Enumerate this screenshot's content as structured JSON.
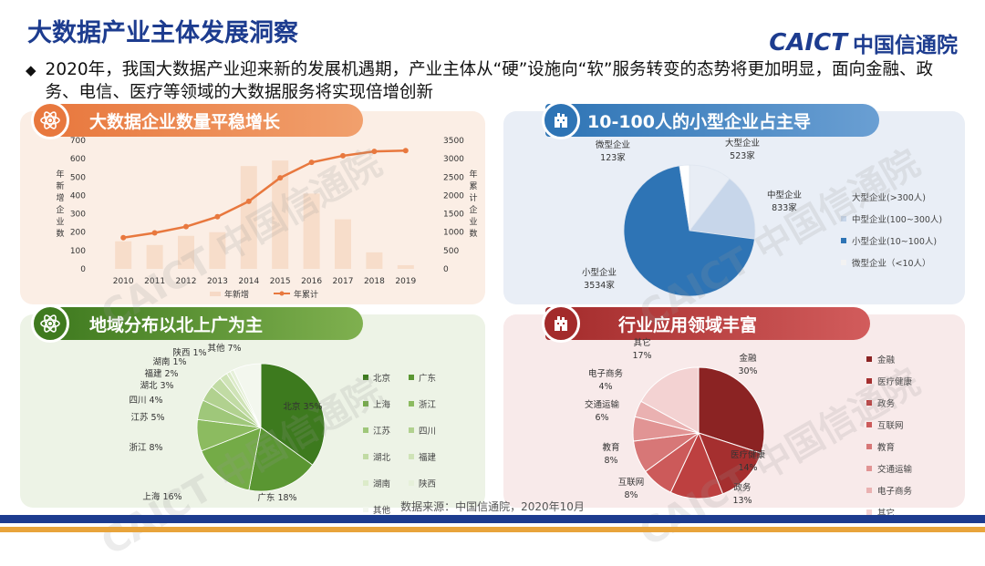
{
  "page_title": "大数据产业主体发展洞察",
  "logo": {
    "en": "CAICT",
    "cn": "中国信通院"
  },
  "bullet_text": "2020年，我国大数据产业迎来新的发展机遇期，产业主体从“硬”设施向“软”服务转变的态势将更加明显，面向金融、政务、电信、医疗等领域的大数据服务将实现倍增创新",
  "source_text": "数据来源：中国信通院，2020年10月",
  "watermark": "CAICT 中国信通院",
  "colors": {
    "brand": "#1d3c8f",
    "orange": "#e8783e",
    "blue": "#2e74b5",
    "green": "#3f7a1f",
    "red": "#a32b2b"
  },
  "panels": {
    "p1": {
      "title": "大数据企业数量平稳增长",
      "icon": "atom-icon"
    },
    "p2": {
      "title": "10-100人的小型企业占主导",
      "icon": "building-icon"
    },
    "p3": {
      "title": "地域分布以北上广为主",
      "icon": "atom-icon"
    },
    "p4": {
      "title": "行业应用领域丰富",
      "icon": "building-icon"
    }
  },
  "chart_data": [
    {
      "id": "growth",
      "type": "bar",
      "title": "大数据企业数量平稳增长",
      "categories": [
        "2010",
        "2011",
        "2012",
        "2013",
        "2014",
        "2015",
        "2016",
        "2017",
        "2018",
        "2019"
      ],
      "series": [
        {
          "name": "年新增",
          "type": "bar",
          "axis": "left",
          "values": [
            150,
            130,
            180,
            200,
            560,
            590,
            410,
            270,
            90,
            20
          ]
        },
        {
          "name": "年累计",
          "type": "line",
          "axis": "right",
          "values": [
            850,
            980,
            1150,
            1420,
            1840,
            2480,
            2900,
            3080,
            3200,
            3220
          ]
        }
      ],
      "left_axis": {
        "label": "年新增企业数",
        "ylim": [
          0,
          700
        ],
        "ticks": [
          "0",
          "100",
          "200",
          "300",
          "400",
          "500",
          "600",
          "700"
        ]
      },
      "right_axis": {
        "label": "年累计企业数",
        "ylim": [
          0,
          3500
        ],
        "ticks": [
          "0",
          "500",
          "1000",
          "1500",
          "2000",
          "2500",
          "3000",
          "3500"
        ]
      },
      "legend": [
        "年新增",
        "年累计"
      ]
    },
    {
      "id": "size",
      "type": "pie",
      "title": "10-100人的小型企业占主导",
      "slices": [
        {
          "name": "大型企业(>300人)",
          "label": "大型企业",
          "value": 523,
          "value_label": "523家",
          "color": "#e8edf5"
        },
        {
          "name": "中型企业(100~300人)",
          "label": "中型企业",
          "value": 833,
          "value_label": "833家",
          "color": "#c7d6ea"
        },
        {
          "name": "小型企业(10~100人)",
          "label": "小型企业",
          "value": 3534,
          "value_label": "3534家",
          "color": "#2e74b5"
        },
        {
          "name": "微型企业（<10人）",
          "label": "微型企业",
          "value": 123,
          "value_label": "123家",
          "color": "#ffffff"
        }
      ]
    },
    {
      "id": "region",
      "type": "pie",
      "title": "地域分布以北上广为主",
      "slices": [
        {
          "name": "北京",
          "value": 35,
          "label": "北京 35%",
          "color": "#3d7a1e"
        },
        {
          "name": "广东",
          "value": 18,
          "label": "广东 18%",
          "color": "#5a9632"
        },
        {
          "name": "上海",
          "value": 16,
          "label": "上海 16%",
          "color": "#74ab47"
        },
        {
          "name": "浙江",
          "value": 8,
          "label": "浙江 8%",
          "color": "#8cbb60"
        },
        {
          "name": "江苏",
          "value": 5,
          "label": "江苏 5%",
          "color": "#9fc77a"
        },
        {
          "name": "四川",
          "value": 4,
          "label": "四川 4%",
          "color": "#b1d18f"
        },
        {
          "name": "湖北",
          "value": 3,
          "label": "湖北 3%",
          "color": "#c1dba4"
        },
        {
          "name": "福建",
          "value": 2,
          "label": "福建 2%",
          "color": "#cfe3b7"
        },
        {
          "name": "湖南",
          "value": 1,
          "label": "湖南 1%",
          "color": "#dcebc9"
        },
        {
          "name": "陕西",
          "value": 1,
          "label": "陕西 1%",
          "color": "#e6f0da"
        },
        {
          "name": "其他",
          "value": 7,
          "label": "其他 7%",
          "color": "#f3f7ee"
        }
      ]
    },
    {
      "id": "industry",
      "type": "pie",
      "title": "行业应用领域丰富",
      "slices": [
        {
          "name": "金融",
          "value": 30,
          "label": "金融",
          "pct": "30%",
          "color": "#8b2323"
        },
        {
          "name": "医疗健康",
          "value": 14,
          "label": "医疗健康",
          "pct": "14%",
          "color": "#a52f2f"
        },
        {
          "name": "政务",
          "value": 13,
          "label": "政务",
          "pct": "13%",
          "color": "#bd4040"
        },
        {
          "name": "互联网",
          "value": 8,
          "label": "互联网",
          "pct": "8%",
          "color": "#cc5a5a"
        },
        {
          "name": "教育",
          "value": 8,
          "label": "教育",
          "pct": "8%",
          "color": "#d77777"
        },
        {
          "name": "交通运输",
          "value": 6,
          "label": "交通运输",
          "pct": "6%",
          "color": "#e19494"
        },
        {
          "name": "电子商务",
          "value": 4,
          "label": "电子商务",
          "pct": "4%",
          "color": "#eab1b1"
        },
        {
          "name": "其它",
          "value": 17,
          "label": "其它",
          "pct": "17%",
          "color": "#f3d2d2"
        }
      ]
    }
  ]
}
